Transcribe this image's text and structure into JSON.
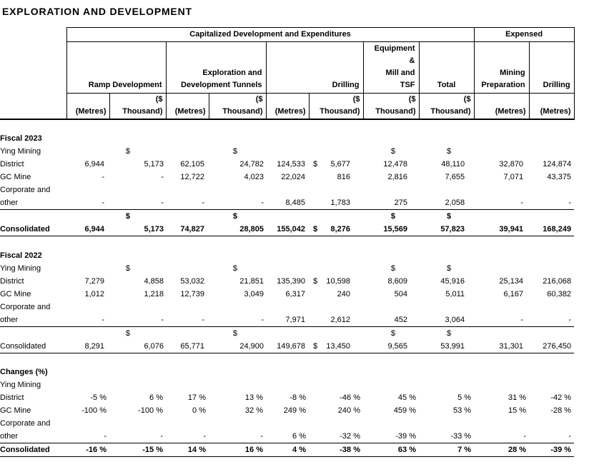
{
  "title": "EXPLORATION AND DEVELOPMENT",
  "currency_symbol": "$",
  "colors": {
    "text": "#000000",
    "border": "#000000",
    "background": "#ffffff"
  },
  "table": {
    "header": {
      "top": [
        {
          "label": "Capitalized Development and Expenditures",
          "span": 8
        },
        {
          "label": "Expensed",
          "span": 2
        }
      ],
      "groups": [
        {
          "label": "Ramp Development",
          "span": 2
        },
        {
          "label": "Exploration and\nDevelopment Tunnels",
          "span": 2
        },
        {
          "label": "Drilling",
          "span": 2
        },
        {
          "label": "Equipment\n&\nMill and\nTSF",
          "span": 1
        },
        {
          "label": "Total",
          "span": 1,
          "center": true
        },
        {
          "label": "Mining\nPreparation",
          "span": 1
        },
        {
          "label": "Drilling",
          "span": 1
        }
      ],
      "units": [
        "(Metres)",
        "($\nThousand)",
        "(Metres)",
        "($\nThousand)",
        "(Metres)",
        "($\nThousand)",
        "($\nThousand)",
        "($\nThousand)",
        "(Metres)",
        "(Metres)"
      ]
    },
    "sections": [
      {
        "title": "Fiscal 2023",
        "style": "fiscal",
        "rows": [
          {
            "labels": [
              "Ying Mining",
              "District"
            ],
            "dollar_above": [
              2,
              4,
              7,
              8
            ],
            "dollar_inline": 6,
            "values": [
              "6,944",
              "5,173",
              "62,105",
              "24,782",
              "124,533",
              "5,677",
              "12,478",
              "48,110",
              "32,870",
              "124,874"
            ]
          },
          {
            "labels": [
              "GC Mine"
            ],
            "values": [
              "-",
              "-",
              "12,722",
              "4,023",
              "22,024",
              "816",
              "2,816",
              "7,655",
              "7,071",
              "43,375"
            ]
          },
          {
            "labels": [
              "Corporate and",
              "other"
            ],
            "rule_below": true,
            "values": [
              "-",
              "-",
              "-",
              "-",
              "8,485",
              "1,783",
              "275",
              "2,058",
              "-",
              "-"
            ]
          },
          {
            "labels": [
              "Consolidated"
            ],
            "bold": true,
            "rule_below": true,
            "dollar_above": [
              2,
              4,
              7,
              8
            ],
            "dollar_inline": 6,
            "values": [
              "6,944",
              "5,173",
              "74,827",
              "28,805",
              "155,042",
              "8,276",
              "15,569",
              "57,823",
              "39,941",
              "168,249"
            ]
          }
        ]
      },
      {
        "title": "Fiscal 2022",
        "style": "fiscal",
        "rows": [
          {
            "labels": [
              "Ying Mining",
              "District"
            ],
            "dollar_above": [
              2,
              4,
              7,
              8
            ],
            "dollar_inline": 6,
            "values": [
              "7,279",
              "4,858",
              "53,032",
              "21,851",
              "135,390",
              "10,598",
              "8,609",
              "45,916",
              "25,134",
              "216,068"
            ]
          },
          {
            "labels": [
              "GC Mine"
            ],
            "values": [
              "1,012",
              "1,218",
              "12,739",
              "3,049",
              "6,317",
              "240",
              "504",
              "5,011",
              "6,167",
              "60,382"
            ]
          },
          {
            "labels": [
              "Corporate and",
              "other"
            ],
            "rule_below": true,
            "values": [
              "-",
              "-",
              "-",
              "-",
              "7,971",
              "2,612",
              "452",
              "3,064",
              "-",
              "-"
            ]
          },
          {
            "labels": [
              "Consolidated"
            ],
            "rule_below": true,
            "dollar_above": [
              2,
              4,
              7,
              8
            ],
            "dollar_inline": 6,
            "values": [
              "8,291",
              "6,076",
              "65,771",
              "24,900",
              "149,678",
              "13,450",
              "9,565",
              "53,991",
              "31,301",
              "276,450"
            ]
          }
        ]
      },
      {
        "title": "Changes (%)",
        "style": "changes",
        "rows": [
          {
            "labels": [
              "Ying Mining",
              "District"
            ],
            "values": [
              "-5 %",
              "6 %",
              "17 %",
              "13 %",
              "-8 %",
              "-46 %",
              "45 %",
              "5 %",
              "31 %",
              "-42 %"
            ]
          },
          {
            "labels": [
              "GC Mine"
            ],
            "values": [
              "-100 %",
              "-100 %",
              "0 %",
              "32 %",
              "249 %",
              "240 %",
              "459 %",
              "53 %",
              "15 %",
              "-28 %"
            ]
          },
          {
            "labels": [
              "Corporate and",
              "other"
            ],
            "rule_below": true,
            "values": [
              "-",
              "-",
              "-",
              "-",
              "6 %",
              "-32 %",
              "-39 %",
              "-33 %",
              "-",
              "-"
            ]
          },
          {
            "labels": [
              "Consolidated"
            ],
            "bold": true,
            "rule_below": true,
            "values": [
              "-16 %",
              "-15 %",
              "14 %",
              "16 %",
              "4 %",
              "-38 %",
              "63 %",
              "7 %",
              "28 %",
              "-39 %"
            ]
          }
        ]
      }
    ]
  }
}
